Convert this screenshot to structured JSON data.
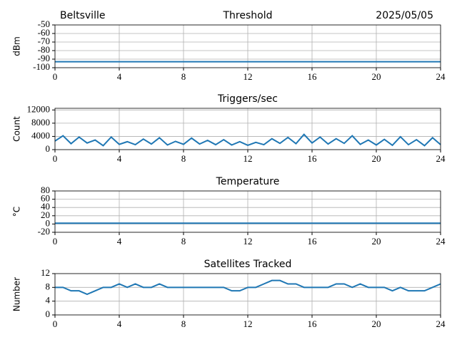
{
  "chart_data": [
    {
      "type": "line",
      "title": "Threshold",
      "left_title": "Beltsville",
      "right_title": "2025/05/05",
      "y_label": "dBm",
      "x": [
        0,
        24
      ],
      "series": [
        {
          "name": "Threshold",
          "color": "#1f77b4",
          "values": [
            -93,
            -93
          ]
        }
      ],
      "xlim": [
        0,
        24
      ],
      "xticks": [
        0,
        4,
        8,
        12,
        16,
        20,
        24
      ],
      "ylim": [
        -100,
        -50
      ],
      "yticks": [
        -100,
        -90,
        -80,
        -70,
        -60,
        -50
      ],
      "grid": true
    },
    {
      "type": "line",
      "title": "Triggers/sec",
      "y_label": "Count",
      "x": [
        0,
        0.5,
        1,
        1.5,
        2,
        2.5,
        3,
        3.5,
        4,
        4.5,
        5,
        5.5,
        6,
        6.5,
        7,
        7.5,
        8,
        8.5,
        9,
        9.5,
        10,
        10.5,
        11,
        11.5,
        12,
        12.5,
        13,
        13.5,
        14,
        14.5,
        15,
        15.5,
        16,
        16.5,
        17,
        17.5,
        18,
        18.5,
        19,
        19.5,
        20,
        20.5,
        21,
        21.5,
        22,
        22.5,
        23,
        23.5,
        24
      ],
      "series": [
        {
          "name": "Triggers/sec",
          "color": "#1f77b4",
          "values": [
            2600,
            4200,
            1800,
            3800,
            2000,
            2900,
            1200,
            3800,
            1600,
            2400,
            1500,
            3200,
            1700,
            3600,
            1400,
            2500,
            1600,
            3500,
            1700,
            2800,
            1500,
            3000,
            1400,
            2400,
            1300,
            2200,
            1500,
            3300,
            1900,
            3700,
            1800,
            4600,
            2000,
            3800,
            1700,
            3300,
            1900,
            4200,
            1600,
            2900,
            1400,
            3100,
            1300,
            3900,
            1500,
            3000,
            1200,
            3600,
            1500
          ]
        }
      ],
      "xlim": [
        0,
        24
      ],
      "xticks": [
        0,
        4,
        8,
        12,
        16,
        20,
        24
      ],
      "ylim": [
        0,
        12500
      ],
      "yticks": [
        0,
        4000,
        8000,
        12000
      ],
      "grid": true
    },
    {
      "type": "line",
      "title": "Temperature",
      "y_label": "°C",
      "x": [
        0,
        24
      ],
      "series": [
        {
          "name": "Temperature",
          "color": "#1f77b4",
          "values": [
            2,
            2
          ]
        }
      ],
      "xlim": [
        0,
        24
      ],
      "xticks": [
        0,
        4,
        8,
        12,
        16,
        20,
        24
      ],
      "ylim": [
        -20,
        80
      ],
      "yticks": [
        -20,
        0,
        20,
        40,
        60,
        80
      ],
      "grid": true
    },
    {
      "type": "line",
      "title": "Satellites Tracked",
      "y_label": "Number",
      "x": [
        0,
        0.5,
        1,
        1.5,
        2,
        2.5,
        3,
        3.5,
        4,
        4.5,
        5,
        5.5,
        6,
        6.5,
        7,
        7.5,
        8,
        8.5,
        9,
        9.5,
        10,
        10.5,
        11,
        11.5,
        12,
        12.5,
        13,
        13.5,
        14,
        14.5,
        15,
        15.5,
        16,
        16.5,
        17,
        17.5,
        18,
        18.5,
        19,
        19.5,
        20,
        20.5,
        21,
        21.5,
        22,
        22.5,
        23,
        23.5,
        24
      ],
      "series": [
        {
          "name": "Satellites Tracked",
          "color": "#1f77b4",
          "values": [
            8,
            8,
            7,
            7,
            6,
            7,
            8,
            8,
            9,
            8,
            9,
            8,
            8,
            9,
            8,
            8,
            8,
            8,
            8,
            8,
            8,
            8,
            7,
            7,
            8,
            8,
            9,
            10,
            10,
            9,
            9,
            8,
            8,
            8,
            8,
            9,
            9,
            8,
            9,
            8,
            8,
            8,
            7,
            8,
            7,
            7,
            7,
            8,
            9
          ]
        }
      ],
      "xlim": [
        0,
        24
      ],
      "xticks": [
        0,
        4,
        8,
        12,
        16,
        20,
        24
      ],
      "ylim": [
        0,
        12
      ],
      "yticks": [
        0,
        4,
        8,
        12
      ],
      "grid": true
    }
  ]
}
